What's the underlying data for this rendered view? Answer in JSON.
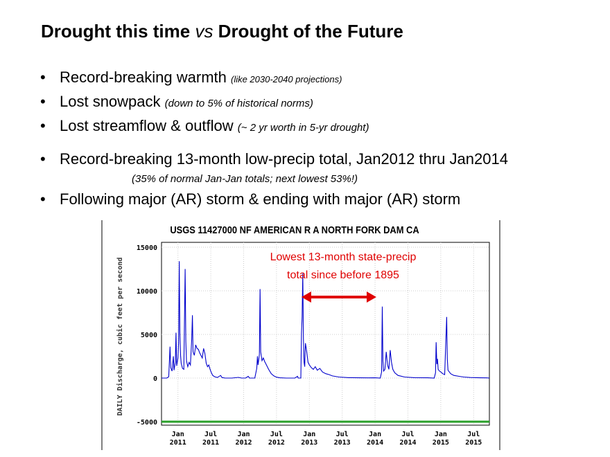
{
  "slide": {
    "title_part1": "Drought this time ",
    "title_vs": "vs",
    "title_part2": " Drought of the Future"
  },
  "bullets": [
    {
      "text": "Record-breaking warmth ",
      "note": "(like 2030-2040 projections)"
    },
    {
      "text": "Lost snowpack ",
      "note": "(down to 5% of historical norms)"
    },
    {
      "text": "Lost streamflow & outflow ",
      "note": "(~ 2 yr worth in 5-yr drought)"
    },
    {
      "text": "Record-breaking 13-month low-precip total, Jan2012 thru Jan2014"
    },
    {
      "text": "Following major (AR) storm & ending with major (AR) storm"
    }
  ],
  "subnote": "(35% of normal Jan-Jan totals; next lowest 53%!)",
  "chart_data": {
    "type": "line",
    "title": "USGS 11427000 NF AMERICAN R A NORTH FORK DAM CA",
    "ylabel": "DAILY Discharge, cubic feet per second",
    "xlabel": "",
    "ylim": [
      -5000,
      15000
    ],
    "y_ticks": [
      "15000",
      "10000",
      "5000",
      "0",
      "-5000"
    ],
    "x_ticks": [
      {
        "month": "Jan",
        "year": "2011"
      },
      {
        "month": "Jul",
        "year": "2011"
      },
      {
        "month": "Jan",
        "year": "2012"
      },
      {
        "month": "Jul",
        "year": "2012"
      },
      {
        "month": "Jan",
        "year": "2013"
      },
      {
        "month": "Jul",
        "year": "2013"
      },
      {
        "month": "Jan",
        "year": "2014"
      },
      {
        "month": "Jul",
        "year": "2014"
      },
      {
        "month": "Jan",
        "year": "2015"
      },
      {
        "month": "Jul",
        "year": "2015"
      }
    ],
    "annotation_line1": "Lowest 13-month state-precip",
    "annotation_line2": "total since before 1895",
    "annotation_color": "#e00000",
    "series_color": "#0000cc",
    "baseline_color": "#2aa02a",
    "arrow_range_years": [
      2012.88,
      2014.02
    ],
    "series": [
      {
        "name": "Daily discharge",
        "points": [
          [
            2010.75,
            0
          ],
          [
            2010.83,
            0
          ],
          [
            2010.86,
            150
          ],
          [
            2010.88,
            3600
          ],
          [
            2010.89,
            1200
          ],
          [
            2010.91,
            800
          ],
          [
            2010.93,
            2500
          ],
          [
            2010.94,
            900
          ],
          [
            2010.96,
            1800
          ],
          [
            2010.97,
            5200
          ],
          [
            2010.98,
            1400
          ],
          [
            2011.0,
            2300
          ],
          [
            2011.01,
            4000
          ],
          [
            2011.02,
            13400
          ],
          [
            2011.03,
            5000
          ],
          [
            2011.04,
            2600
          ],
          [
            2011.05,
            1700
          ],
          [
            2011.07,
            1100
          ],
          [
            2011.09,
            1000
          ],
          [
            2011.11,
            12500
          ],
          [
            2011.12,
            4200
          ],
          [
            2011.13,
            2000
          ],
          [
            2011.15,
            1300
          ],
          [
            2011.17,
            1800
          ],
          [
            2011.19,
            1500
          ],
          [
            2011.21,
            4500
          ],
          [
            2011.22,
            7200
          ],
          [
            2011.23,
            3000
          ],
          [
            2011.25,
            2600
          ],
          [
            2011.27,
            3800
          ],
          [
            2011.29,
            3400
          ],
          [
            2011.31,
            3300
          ],
          [
            2011.33,
            2900
          ],
          [
            2011.35,
            2600
          ],
          [
            2011.37,
            2300
          ],
          [
            2011.39,
            3400
          ],
          [
            2011.41,
            2800
          ],
          [
            2011.43,
            1700
          ],
          [
            2011.45,
            1300
          ],
          [
            2011.47,
            1500
          ],
          [
            2011.49,
            1000
          ],
          [
            2011.51,
            600
          ],
          [
            2011.53,
            300
          ],
          [
            2011.56,
            150
          ],
          [
            2011.6,
            60
          ],
          [
            2011.65,
            300
          ],
          [
            2011.67,
            60
          ],
          [
            2011.72,
            0
          ],
          [
            2011.82,
            0
          ],
          [
            2011.92,
            80
          ],
          [
            2011.97,
            0
          ],
          [
            2012.03,
            0
          ],
          [
            2012.07,
            200
          ],
          [
            2012.09,
            0
          ],
          [
            2012.17,
            0
          ],
          [
            2012.2,
            1100
          ],
          [
            2012.21,
            2500
          ],
          [
            2012.22,
            1500
          ],
          [
            2012.24,
            2700
          ],
          [
            2012.25,
            10200
          ],
          [
            2012.26,
            3000
          ],
          [
            2012.28,
            2000
          ],
          [
            2012.3,
            2300
          ],
          [
            2012.32,
            1900
          ],
          [
            2012.34,
            1600
          ],
          [
            2012.38,
            1000
          ],
          [
            2012.42,
            500
          ],
          [
            2012.46,
            250
          ],
          [
            2012.5,
            100
          ],
          [
            2012.55,
            30
          ],
          [
            2012.65,
            0
          ],
          [
            2012.78,
            0
          ],
          [
            2012.82,
            200
          ],
          [
            2012.83,
            0
          ],
          [
            2012.87,
            0
          ],
          [
            2012.88,
            5100
          ],
          [
            2012.89,
            7000
          ],
          [
            2012.9,
            12000
          ],
          [
            2012.91,
            4500
          ],
          [
            2012.92,
            1800
          ],
          [
            2012.93,
            1300
          ],
          [
            2012.94,
            4000
          ],
          [
            2012.96,
            3000
          ],
          [
            2012.98,
            1800
          ],
          [
            2013.0,
            1500
          ],
          [
            2013.03,
            1200
          ],
          [
            2013.06,
            1000
          ],
          [
            2013.09,
            1300
          ],
          [
            2013.12,
            900
          ],
          [
            2013.16,
            1100
          ],
          [
            2013.2,
            700
          ],
          [
            2013.25,
            500
          ],
          [
            2013.3,
            400
          ],
          [
            2013.35,
            250
          ],
          [
            2013.45,
            120
          ],
          [
            2013.6,
            50
          ],
          [
            2013.75,
            30
          ],
          [
            2013.9,
            20
          ],
          [
            2014.0,
            30
          ],
          [
            2014.08,
            0
          ],
          [
            2014.1,
            700
          ],
          [
            2014.11,
            8200
          ],
          [
            2014.12,
            2000
          ],
          [
            2014.13,
            800
          ],
          [
            2014.15,
            1000
          ],
          [
            2014.17,
            3000
          ],
          [
            2014.19,
            1500
          ],
          [
            2014.21,
            1000
          ],
          [
            2014.23,
            3200
          ],
          [
            2014.25,
            1800
          ],
          [
            2014.27,
            1000
          ],
          [
            2014.3,
            600
          ],
          [
            2014.35,
            300
          ],
          [
            2014.45,
            120
          ],
          [
            2014.6,
            50
          ],
          [
            2014.8,
            30
          ],
          [
            2014.9,
            0
          ],
          [
            2014.92,
            600
          ],
          [
            2014.93,
            4100
          ],
          [
            2014.94,
            1600
          ],
          [
            2014.95,
            2200
          ],
          [
            2014.96,
            1000
          ],
          [
            2014.98,
            800
          ],
          [
            2015.0,
            700
          ],
          [
            2015.03,
            500
          ],
          [
            2015.06,
            400
          ],
          [
            2015.09,
            7000
          ],
          [
            2015.1,
            2200
          ],
          [
            2015.11,
            900
          ],
          [
            2015.13,
            700
          ],
          [
            2015.15,
            500
          ],
          [
            2015.2,
            300
          ],
          [
            2015.28,
            200
          ],
          [
            2015.35,
            120
          ],
          [
            2015.45,
            60
          ],
          [
            2015.6,
            30
          ],
          [
            2015.7,
            20
          ],
          [
            2015.74,
            0
          ]
        ]
      }
    ]
  }
}
